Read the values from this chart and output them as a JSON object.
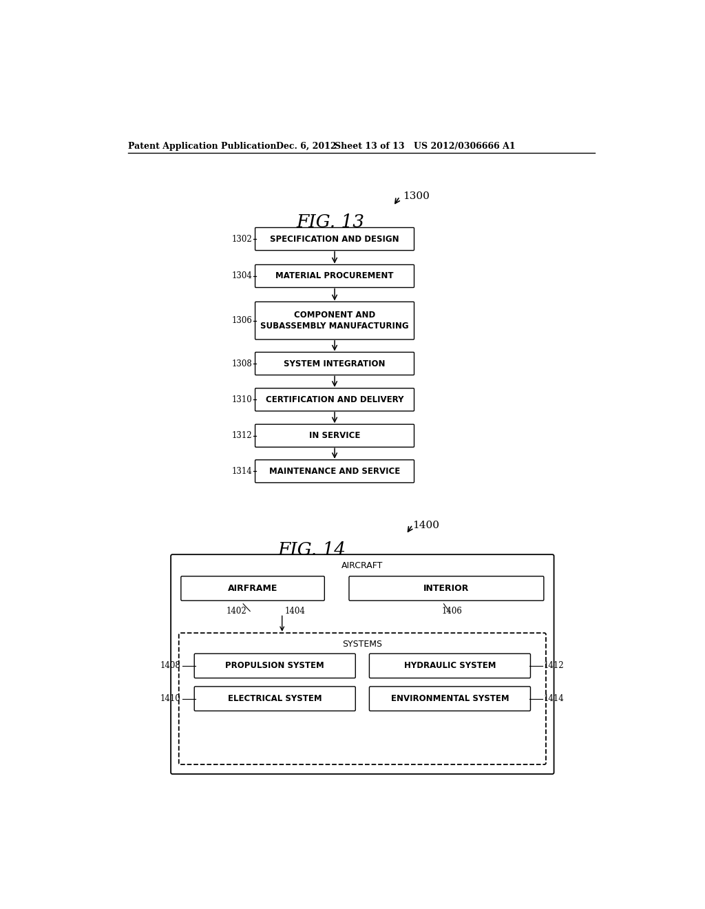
{
  "bg_color": "#ffffff",
  "header_text": "Patent Application Publication",
  "header_date": "Dec. 6, 2012",
  "header_sheet": "Sheet 13 of 13",
  "header_patent": "US 2012/0306666 A1",
  "fig13_title": "FIG. 13",
  "fig13_label": "1300",
  "fig14_title": "FIG. 14",
  "fig14_label": "1400",
  "fig13_boxes": [
    {
      "label": "SPECIFICATION AND DESIGN",
      "ref": "1302",
      "multiline": false
    },
    {
      "label": "MATERIAL PROCUREMENT",
      "ref": "1304",
      "multiline": false
    },
    {
      "label": "COMPONENT AND\nSUBASSEMBLY MANUFACTURING",
      "ref": "1306",
      "multiline": true
    },
    {
      "label": "SYSTEM INTEGRATION",
      "ref": "1308",
      "multiline": false
    },
    {
      "label": "CERTIFICATION AND DELIVERY",
      "ref": "1310",
      "multiline": false
    },
    {
      "label": "IN SERVICE",
      "ref": "1312",
      "multiline": false
    },
    {
      "label": "MAINTENANCE AND SERVICE",
      "ref": "1314",
      "multiline": false
    }
  ],
  "fig14_outer_label": "AIRCRAFT",
  "fig14_inner_label": "SYSTEMS",
  "fig14_mid_ref": "1404"
}
